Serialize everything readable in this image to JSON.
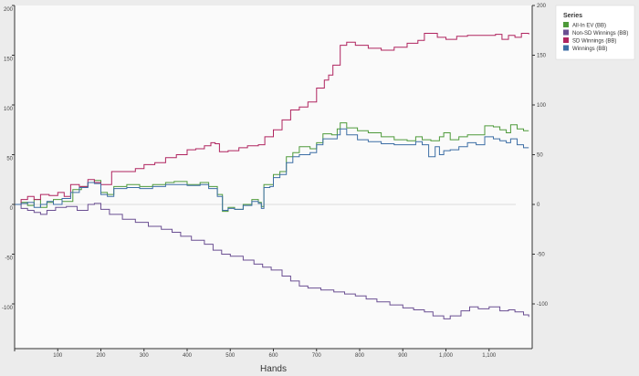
{
  "chart_data": {
    "type": "line",
    "xlabel": "Hands",
    "ylabel": "",
    "xlim": [
      0,
      1200
    ],
    "ylim": [
      -145,
      200
    ],
    "x_ticks": [
      "100",
      "200",
      "300",
      "400",
      "500",
      "600",
      "700",
      "800",
      "900",
      "1,000",
      "1,100"
    ],
    "y_ticks": [
      "200",
      "150",
      "100",
      "50",
      "0",
      "-50",
      "-100"
    ],
    "zero_line": true,
    "legend": {
      "title": "Series",
      "position": "top-right"
    },
    "series": [
      {
        "name": "All-In EV (BB)",
        "color": "#4e9a3a",
        "points": [
          [
            0,
            0
          ],
          [
            15,
            2
          ],
          [
            30,
            -1
          ],
          [
            45,
            5
          ],
          [
            60,
            -3
          ],
          [
            75,
            2
          ],
          [
            90,
            5
          ],
          [
            110,
            3
          ],
          [
            135,
            15
          ],
          [
            155,
            18
          ],
          [
            170,
            22
          ],
          [
            185,
            24
          ],
          [
            200,
            12
          ],
          [
            215,
            10
          ],
          [
            230,
            18
          ],
          [
            260,
            20
          ],
          [
            290,
            18
          ],
          [
            320,
            20
          ],
          [
            350,
            22
          ],
          [
            370,
            23
          ],
          [
            400,
            20
          ],
          [
            430,
            22
          ],
          [
            450,
            18
          ],
          [
            470,
            10
          ],
          [
            482,
            -7
          ],
          [
            495,
            -3
          ],
          [
            510,
            -5
          ],
          [
            530,
            0
          ],
          [
            550,
            5
          ],
          [
            565,
            2
          ],
          [
            572,
            -2
          ],
          [
            578,
            20
          ],
          [
            592,
            20
          ],
          [
            600,
            30
          ],
          [
            615,
            33
          ],
          [
            630,
            48
          ],
          [
            645,
            52
          ],
          [
            660,
            58
          ],
          [
            685,
            56
          ],
          [
            700,
            62
          ],
          [
            715,
            71
          ],
          [
            735,
            70
          ],
          [
            748,
            76
          ],
          [
            755,
            82
          ],
          [
            770,
            77
          ],
          [
            795,
            74
          ],
          [
            820,
            72
          ],
          [
            850,
            68
          ],
          [
            880,
            65
          ],
          [
            910,
            64
          ],
          [
            930,
            68
          ],
          [
            945,
            65
          ],
          [
            965,
            64
          ],
          [
            985,
            68
          ],
          [
            995,
            72
          ],
          [
            1010,
            65
          ],
          [
            1030,
            68
          ],
          [
            1050,
            70
          ],
          [
            1070,
            70
          ],
          [
            1090,
            79
          ],
          [
            1110,
            78
          ],
          [
            1125,
            75
          ],
          [
            1140,
            72
          ],
          [
            1150,
            80
          ],
          [
            1165,
            76
          ],
          [
            1180,
            74
          ],
          [
            1192,
            74
          ]
        ]
      },
      {
        "name": "Non-SD Winnings (BB)",
        "color": "#6b4f92",
        "points": [
          [
            0,
            0
          ],
          [
            15,
            -4
          ],
          [
            30,
            -6
          ],
          [
            45,
            -8
          ],
          [
            60,
            -10
          ],
          [
            75,
            -6
          ],
          [
            95,
            -3
          ],
          [
            120,
            -2
          ],
          [
            145,
            -6
          ],
          [
            170,
            0
          ],
          [
            185,
            1
          ],
          [
            200,
            -5
          ],
          [
            220,
            -10
          ],
          [
            250,
            -15
          ],
          [
            280,
            -18
          ],
          [
            310,
            -22
          ],
          [
            340,
            -25
          ],
          [
            365,
            -28
          ],
          [
            385,
            -32
          ],
          [
            410,
            -36
          ],
          [
            440,
            -40
          ],
          [
            460,
            -46
          ],
          [
            480,
            -50
          ],
          [
            500,
            -52
          ],
          [
            530,
            -56
          ],
          [
            555,
            -60
          ],
          [
            575,
            -63
          ],
          [
            595,
            -66
          ],
          [
            620,
            -72
          ],
          [
            640,
            -77
          ],
          [
            660,
            -82
          ],
          [
            680,
            -84
          ],
          [
            710,
            -86
          ],
          [
            740,
            -88
          ],
          [
            765,
            -90
          ],
          [
            790,
            -92
          ],
          [
            815,
            -95
          ],
          [
            840,
            -98
          ],
          [
            870,
            -101
          ],
          [
            900,
            -104
          ],
          [
            925,
            -106
          ],
          [
            950,
            -108
          ],
          [
            970,
            -112
          ],
          [
            995,
            -115
          ],
          [
            1010,
            -112
          ],
          [
            1035,
            -107
          ],
          [
            1055,
            -103
          ],
          [
            1075,
            -105
          ],
          [
            1100,
            -103
          ],
          [
            1125,
            -107
          ],
          [
            1145,
            -106
          ],
          [
            1160,
            -108
          ],
          [
            1180,
            -111
          ],
          [
            1192,
            -113
          ]
        ]
      },
      {
        "name": "SD Winnings (BB)",
        "color": "#b0245f",
        "points": [
          [
            0,
            0
          ],
          [
            15,
            5
          ],
          [
            30,
            8
          ],
          [
            45,
            5
          ],
          [
            60,
            10
          ],
          [
            80,
            9
          ],
          [
            100,
            12
          ],
          [
            115,
            8
          ],
          [
            130,
            20
          ],
          [
            150,
            18
          ],
          [
            170,
            25
          ],
          [
            185,
            22
          ],
          [
            200,
            20
          ],
          [
            215,
            20
          ],
          [
            225,
            33
          ],
          [
            260,
            33
          ],
          [
            280,
            36
          ],
          [
            300,
            40
          ],
          [
            325,
            42
          ],
          [
            350,
            47
          ],
          [
            375,
            50
          ],
          [
            400,
            55
          ],
          [
            420,
            56
          ],
          [
            440,
            59
          ],
          [
            455,
            62
          ],
          [
            465,
            61
          ],
          [
            475,
            53
          ],
          [
            495,
            54
          ],
          [
            520,
            57
          ],
          [
            540,
            59
          ],
          [
            565,
            60
          ],
          [
            575,
            60
          ],
          [
            580,
            68
          ],
          [
            600,
            75
          ],
          [
            620,
            85
          ],
          [
            640,
            95
          ],
          [
            660,
            98
          ],
          [
            680,
            103
          ],
          [
            700,
            117
          ],
          [
            718,
            125
          ],
          [
            728,
            130
          ],
          [
            738,
            140
          ],
          [
            755,
            160
          ],
          [
            770,
            163
          ],
          [
            790,
            160
          ],
          [
            820,
            157
          ],
          [
            850,
            155
          ],
          [
            880,
            158
          ],
          [
            910,
            162
          ],
          [
            935,
            165
          ],
          [
            950,
            172
          ],
          [
            965,
            172
          ],
          [
            980,
            168
          ],
          [
            1000,
            166
          ],
          [
            1025,
            169
          ],
          [
            1050,
            170
          ],
          [
            1075,
            170
          ],
          [
            1100,
            170
          ],
          [
            1115,
            171
          ],
          [
            1130,
            166
          ],
          [
            1145,
            170
          ],
          [
            1160,
            168
          ],
          [
            1175,
            172
          ],
          [
            1192,
            171
          ]
        ]
      },
      {
        "name": "Winnings (BB)",
        "color": "#3d6ea5",
        "points": [
          [
            0,
            0
          ],
          [
            15,
            1
          ],
          [
            30,
            2
          ],
          [
            45,
            -3
          ],
          [
            60,
            0
          ],
          [
            75,
            3
          ],
          [
            90,
            0
          ],
          [
            110,
            6
          ],
          [
            130,
            12
          ],
          [
            150,
            17
          ],
          [
            170,
            22
          ],
          [
            185,
            21
          ],
          [
            200,
            10
          ],
          [
            215,
            8
          ],
          [
            230,
            16
          ],
          [
            260,
            17
          ],
          [
            290,
            16
          ],
          [
            320,
            18
          ],
          [
            350,
            20
          ],
          [
            370,
            20
          ],
          [
            400,
            19
          ],
          [
            430,
            20
          ],
          [
            450,
            16
          ],
          [
            470,
            8
          ],
          [
            482,
            -6
          ],
          [
            495,
            -4
          ],
          [
            510,
            -5
          ],
          [
            530,
            -1
          ],
          [
            550,
            3
          ],
          [
            565,
            1
          ],
          [
            572,
            -4
          ],
          [
            578,
            17
          ],
          [
            592,
            18
          ],
          [
            600,
            27
          ],
          [
            615,
            30
          ],
          [
            630,
            42
          ],
          [
            645,
            48
          ],
          [
            660,
            50
          ],
          [
            685,
            52
          ],
          [
            700,
            60
          ],
          [
            715,
            66
          ],
          [
            735,
            66
          ],
          [
            748,
            70
          ],
          [
            755,
            76
          ],
          [
            770,
            70
          ],
          [
            795,
            65
          ],
          [
            820,
            63
          ],
          [
            850,
            61
          ],
          [
            880,
            60
          ],
          [
            910,
            60
          ],
          [
            930,
            63
          ],
          [
            945,
            60
          ],
          [
            960,
            48
          ],
          [
            975,
            58
          ],
          [
            985,
            50
          ],
          [
            995,
            54
          ],
          [
            1010,
            55
          ],
          [
            1030,
            58
          ],
          [
            1050,
            62
          ],
          [
            1070,
            60
          ],
          [
            1090,
            68
          ],
          [
            1110,
            66
          ],
          [
            1125,
            64
          ],
          [
            1140,
            62
          ],
          [
            1150,
            66
          ],
          [
            1165,
            60
          ],
          [
            1180,
            57
          ],
          [
            1192,
            57
          ]
        ]
      }
    ]
  }
}
